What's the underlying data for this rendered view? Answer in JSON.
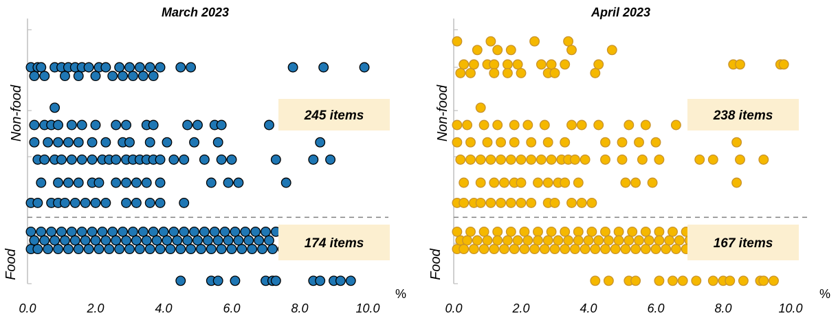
{
  "chart_data": [
    {
      "type": "scatter",
      "title": "March 2023",
      "x_unit": "%",
      "xlim": [
        0,
        10
      ],
      "x_ticks": [
        "0.0",
        "2.0",
        "4.0",
        "6.0",
        "8.0",
        "10.0"
      ],
      "groups": [
        "Non-food",
        "Food"
      ],
      "annotations": [
        "245 items",
        "174 items"
      ],
      "marker_color": "#1f77b4",
      "marker_edge": "#000000",
      "threshold_line": "dashed",
      "series": [
        {
          "group": "Non-food",
          "rows": [
            {
              "y": 3.75,
              "x": [
                0.1,
                0.3,
                0.4,
                0.8,
                1.0,
                1.2,
                1.4,
                1.6,
                1.8,
                2.1,
                2.3,
                2.7,
                3.0,
                3.3,
                3.6,
                3.9,
                4.5,
                4.8,
                7.8,
                8.7,
                9.9
              ]
            },
            {
              "y": 3.6,
              "x": [
                0.2,
                0.5,
                1.1,
                1.5,
                2.0,
                2.5,
                2.8,
                3.1,
                3.4,
                3.7
              ]
            },
            {
              "y": 3.05,
              "x": [
                0.8
              ]
            },
            {
              "y": 2.75,
              "x": [
                0.2,
                0.5,
                0.7,
                0.9,
                1.3,
                1.6,
                2.0,
                2.6,
                2.9,
                3.5,
                3.7,
                4.7,
                5.0,
                5.5,
                5.7,
                7.1,
                8.0
              ]
            },
            {
              "y": 2.45,
              "x": [
                0.2,
                0.6,
                0.9,
                1.2,
                1.5,
                1.9,
                2.3,
                2.8,
                3.0,
                3.6,
                4.1,
                4.9,
                5.6,
                8.6
              ]
            },
            {
              "y": 2.15,
              "x": [
                0.3,
                0.5,
                0.8,
                1.0,
                1.3,
                1.6,
                1.9,
                2.2,
                2.4,
                2.6,
                2.9,
                3.1,
                3.3,
                3.5,
                3.7,
                3.9,
                4.3,
                4.6,
                5.2,
                5.7,
                6.0,
                7.3,
                8.4,
                8.9
              ]
            },
            {
              "y": 1.75,
              "x": [
                0.4,
                0.9,
                1.2,
                1.5,
                1.9,
                2.1,
                2.6,
                2.9,
                3.2,
                3.5,
                3.9,
                5.4,
                5.9,
                6.2,
                7.6
              ]
            },
            {
              "y": 1.4,
              "x": [
                0.1,
                0.3,
                0.7,
                0.9,
                1.1,
                1.4,
                1.7,
                2.0,
                2.3,
                2.9,
                3.2,
                3.6,
                3.9,
                4.6
              ]
            }
          ]
        },
        {
          "group": "Food",
          "rows": [
            {
              "y": 0.9,
              "x": [
                0.1,
                0.4,
                0.7,
                1.0,
                1.3,
                1.6,
                1.9,
                2.2,
                2.5,
                2.8,
                3.1,
                3.4,
                3.7,
                4.0,
                4.3,
                4.6,
                4.9,
                5.2,
                5.5,
                5.8,
                6.1,
                6.4,
                6.7,
                7.0,
                7.3,
                7.6
              ]
            },
            {
              "y": 0.75,
              "x": [
                0.2,
                0.5,
                0.8,
                1.1,
                1.4,
                1.7,
                2.0,
                2.3,
                2.6,
                2.9,
                3.2,
                3.5,
                3.8,
                4.1,
                4.4,
                4.7,
                5.0,
                5.3,
                5.6,
                5.9,
                6.2,
                6.5,
                6.8,
                7.1
              ]
            },
            {
              "y": 0.6,
              "x": [
                0.1,
                0.3,
                0.6,
                0.9,
                1.2,
                1.5,
                1.8,
                2.1,
                2.4,
                2.7,
                3.0,
                3.3,
                3.6,
                3.9,
                4.2,
                4.5,
                4.8,
                5.1,
                5.4,
                5.7,
                6.0,
                6.3,
                6.6,
                6.9,
                7.2,
                7.5,
                7.8,
                9.9
              ]
            },
            {
              "y": 0.05,
              "x": [
                4.5,
                5.4,
                5.6,
                6.1,
                7.0,
                7.2,
                7.3,
                8.4,
                8.6,
                9.0,
                9.2,
                9.5
              ]
            }
          ]
        }
      ]
    },
    {
      "type": "scatter",
      "title": "April 2023",
      "x_unit": "%",
      "xlim": [
        0,
        10
      ],
      "x_ticks": [
        "0.0",
        "2.0",
        "4.0",
        "6.0",
        "8.0",
        "10.0"
      ],
      "groups": [
        "Non-food",
        "Food"
      ],
      "annotations": [
        "238 items",
        "167 items"
      ],
      "marker_color": "#f5b800",
      "marker_edge": "#c8922a",
      "threshold_line": "dashed",
      "series": [
        {
          "group": "Non-food",
          "rows": [
            {
              "y": 4.2,
              "x": [
                0.1,
                1.1,
                2.4,
                3.4
              ]
            },
            {
              "y": 4.05,
              "x": [
                0.7,
                1.3,
                1.7,
                3.5,
                4.7
              ]
            },
            {
              "y": 3.8,
              "x": [
                0.3,
                0.6,
                1.0,
                1.2,
                1.6,
                1.9,
                2.6,
                2.9,
                3.3,
                4.3,
                8.3,
                8.5,
                9.7,
                9.8
              ]
            },
            {
              "y": 3.65,
              "x": [
                0.2,
                0.5,
                1.2,
                1.6,
                2.0,
                2.8,
                3.0,
                4.2
              ]
            },
            {
              "y": 3.05,
              "x": [
                0.8
              ]
            },
            {
              "y": 2.75,
              "x": [
                0.1,
                0.4,
                0.9,
                1.3,
                1.8,
                2.2,
                2.7,
                3.5,
                3.8,
                4.3,
                5.2,
                5.7,
                6.6,
                7.5
              ]
            },
            {
              "y": 2.45,
              "x": [
                0.1,
                0.5,
                1.0,
                1.4,
                1.8,
                2.3,
                2.8,
                3.3,
                4.5,
                5.0,
                5.5,
                6.0,
                8.4
              ]
            },
            {
              "y": 2.15,
              "x": [
                0.2,
                0.5,
                0.8,
                1.1,
                1.4,
                1.7,
                2.0,
                2.3,
                2.6,
                2.9,
                3.2,
                3.4,
                3.6,
                3.9,
                4.5,
                5.0,
                5.6,
                6.1,
                7.3,
                7.7,
                8.5,
                9.2
              ]
            },
            {
              "y": 1.75,
              "x": [
                0.3,
                0.8,
                1.2,
                1.5,
                1.8,
                2.0,
                2.5,
                2.8,
                3.1,
                3.3,
                3.7,
                5.1,
                5.4,
                5.9,
                8.4
              ]
            },
            {
              "y": 1.4,
              "x": [
                0.1,
                0.3,
                0.6,
                0.8,
                1.1,
                1.4,
                1.7,
                2.0,
                2.3,
                2.8,
                3.0,
                3.5,
                3.8,
                4.1
              ]
            }
          ]
        },
        {
          "group": "Food",
          "rows": [
            {
              "y": 0.9,
              "x": [
                0.1,
                0.5,
                0.9,
                1.3,
                1.7,
                2.1,
                2.5,
                2.9,
                3.3,
                3.7,
                4.1,
                4.5,
                4.9,
                5.3,
                5.7,
                6.1,
                6.5,
                6.9,
                7.3
              ]
            },
            {
              "y": 0.75,
              "x": [
                0.2,
                0.4,
                0.7,
                1.0,
                1.3,
                1.6,
                1.9,
                2.2,
                2.5,
                2.8,
                3.1,
                3.4,
                3.7,
                4.0,
                4.3,
                4.6,
                4.9,
                5.2,
                5.5,
                5.8,
                6.1,
                6.4,
                6.7,
                7.0,
                7.4,
                9.1
              ]
            },
            {
              "y": 0.6,
              "x": [
                0.1,
                0.3,
                0.6,
                0.9,
                1.2,
                1.5,
                1.8,
                2.1,
                2.4,
                2.7,
                3.0,
                3.3,
                3.6,
                3.9,
                4.2,
                4.5,
                4.8,
                5.1,
                5.4,
                5.7,
                6.0,
                6.3,
                6.6,
                6.9,
                7.2,
                7.6,
                8.0,
                8.3,
                8.7,
                9.5,
                9.7
              ]
            },
            {
              "y": 0.05,
              "x": [
                4.2,
                4.6,
                5.2,
                5.4,
                6.1,
                6.5,
                6.8,
                7.2,
                7.7,
                8.0,
                8.2,
                8.6,
                9.1,
                9.2,
                9.5
              ]
            }
          ]
        }
      ]
    }
  ]
}
